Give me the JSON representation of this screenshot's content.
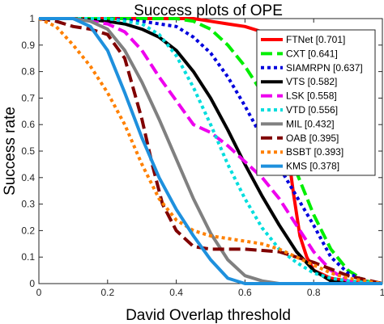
{
  "chart_data": {
    "type": "line",
    "title": "Success plots of OPE",
    "xlabel": "David Overlap threshold",
    "ylabel": "Success rate",
    "xlim": [
      0,
      1
    ],
    "ylim": [
      0,
      1
    ],
    "x_ticks": [
      "0",
      "0.2",
      "0.4",
      "0.6",
      "0.8",
      "1"
    ],
    "y_ticks": [
      "0",
      "0.1",
      "0.2",
      "0.3",
      "0.4",
      "0.5",
      "0.6",
      "0.7",
      "0.8",
      "0.9",
      "1"
    ],
    "grid": false,
    "legend_position": "top-right",
    "series": [
      {
        "name": "FTNet [0.701]",
        "color": "#ff0000",
        "dash": "solid",
        "x": [
          0,
          0.05,
          0.1,
          0.15,
          0.2,
          0.25,
          0.3,
          0.35,
          0.4,
          0.45,
          0.5,
          0.55,
          0.6,
          0.65,
          0.68,
          0.7,
          0.72,
          0.74,
          0.76,
          0.78,
          0.8,
          0.85,
          0.9,
          0.95,
          1.0
        ],
        "y": [
          1,
          1,
          1,
          1,
          1,
          1,
          1,
          1,
          1,
          1,
          0.99,
          0.98,
          0.97,
          0.95,
          0.9,
          0.75,
          0.55,
          0.35,
          0.18,
          0.1,
          0.05,
          0.02,
          0.01,
          0.005,
          0
        ]
      },
      {
        "name": "CXT [0.641]",
        "color": "#00ee00",
        "dash": "dashed",
        "x": [
          0,
          0.1,
          0.2,
          0.3,
          0.4,
          0.45,
          0.5,
          0.55,
          0.6,
          0.65,
          0.7,
          0.75,
          0.8,
          0.85,
          0.9,
          0.95,
          1.0
        ],
        "y": [
          1,
          1,
          1,
          1,
          1,
          0.99,
          0.96,
          0.9,
          0.82,
          0.72,
          0.6,
          0.42,
          0.26,
          0.13,
          0.05,
          0.01,
          0
        ]
      },
      {
        "name": "SIAMRPN [0.637]",
        "color": "#0000dd",
        "dash": "dotted",
        "x": [
          0,
          0.1,
          0.2,
          0.3,
          0.4,
          0.45,
          0.5,
          0.55,
          0.6,
          0.65,
          0.7,
          0.75,
          0.8,
          0.85,
          0.9,
          0.95,
          1.0
        ],
        "y": [
          1,
          1,
          1,
          0.99,
          0.97,
          0.93,
          0.87,
          0.78,
          0.67,
          0.55,
          0.44,
          0.33,
          0.22,
          0.1,
          0.04,
          0.01,
          0
        ]
      },
      {
        "name": "VTS [0.582]",
        "color": "#000000",
        "dash": "solid",
        "x": [
          0,
          0.1,
          0.2,
          0.25,
          0.3,
          0.35,
          0.4,
          0.45,
          0.5,
          0.55,
          0.6,
          0.65,
          0.7,
          0.75,
          0.8,
          0.85,
          0.9,
          1.0
        ],
        "y": [
          1,
          1,
          0.99,
          0.98,
          0.96,
          0.93,
          0.88,
          0.8,
          0.7,
          0.58,
          0.45,
          0.33,
          0.22,
          0.12,
          0.05,
          0.01,
          0,
          0
        ]
      },
      {
        "name": "LSK [0.558]",
        "color": "#ee00ee",
        "dash": "dashed",
        "x": [
          0,
          0.1,
          0.2,
          0.25,
          0.3,
          0.35,
          0.4,
          0.45,
          0.5,
          0.55,
          0.6,
          0.65,
          0.7,
          0.75,
          0.8,
          0.85,
          0.9,
          1.0
        ],
        "y": [
          1,
          1,
          0.98,
          0.95,
          0.88,
          0.78,
          0.69,
          0.6,
          0.57,
          0.52,
          0.46,
          0.4,
          0.32,
          0.22,
          0.12,
          0.05,
          0.01,
          0
        ]
      },
      {
        "name": "VTD [0.556]",
        "color": "#00dddd",
        "dash": "dotted",
        "x": [
          0,
          0.1,
          0.2,
          0.3,
          0.35,
          0.4,
          0.45,
          0.5,
          0.55,
          0.6,
          0.65,
          0.7,
          0.75,
          0.8,
          0.85,
          0.9,
          1.0
        ],
        "y": [
          1,
          1,
          1,
          0.98,
          0.94,
          0.86,
          0.74,
          0.6,
          0.45,
          0.32,
          0.21,
          0.13,
          0.08,
          0.04,
          0.02,
          0.01,
          0
        ]
      },
      {
        "name": "MIL [0.432]",
        "color": "#808080",
        "dash": "solid",
        "x": [
          0,
          0.1,
          0.15,
          0.2,
          0.25,
          0.3,
          0.35,
          0.4,
          0.45,
          0.5,
          0.55,
          0.6,
          0.65,
          0.7,
          0.8,
          1.0
        ],
        "y": [
          1,
          1,
          0.99,
          0.96,
          0.88,
          0.76,
          0.62,
          0.47,
          0.32,
          0.19,
          0.09,
          0.03,
          0.01,
          0,
          0,
          0
        ]
      },
      {
        "name": "OAB [0.395]",
        "color": "#800000",
        "dash": "dashed",
        "x": [
          0,
          0.05,
          0.1,
          0.15,
          0.2,
          0.25,
          0.3,
          0.33,
          0.36,
          0.4,
          0.45,
          0.5,
          0.55,
          0.6,
          0.7,
          0.8,
          0.9,
          1.0
        ],
        "y": [
          1,
          0.99,
          0.97,
          0.96,
          0.94,
          0.85,
          0.62,
          0.45,
          0.3,
          0.2,
          0.14,
          0.13,
          0.13,
          0.13,
          0.12,
          0.08,
          0.03,
          0
        ]
      },
      {
        "name": "BSBT [0.393]",
        "color": "#ff8000",
        "dash": "dotted",
        "x": [
          0,
          0.05,
          0.1,
          0.15,
          0.2,
          0.25,
          0.3,
          0.35,
          0.4,
          0.45,
          0.5,
          0.55,
          0.6,
          0.65,
          0.7,
          0.75,
          0.8,
          0.85,
          0.9,
          0.95,
          1.0
        ],
        "y": [
          1,
          0.97,
          0.9,
          0.82,
          0.72,
          0.6,
          0.45,
          0.32,
          0.24,
          0.2,
          0.18,
          0.17,
          0.16,
          0.15,
          0.13,
          0.1,
          0.07,
          0.04,
          0.02,
          0.01,
          0
        ]
      },
      {
        "name": "KMS [0.378]",
        "color": "#1e90dd",
        "dash": "solid",
        "x": [
          0,
          0.05,
          0.1,
          0.15,
          0.2,
          0.25,
          0.3,
          0.35,
          0.4,
          0.45,
          0.5,
          0.55,
          0.6,
          0.7,
          0.8,
          0.9,
          1.0
        ],
        "y": [
          1,
          1,
          1,
          0.97,
          0.88,
          0.72,
          0.55,
          0.4,
          0.28,
          0.18,
          0.09,
          0.02,
          0,
          0,
          0,
          0,
          0
        ]
      }
    ]
  }
}
